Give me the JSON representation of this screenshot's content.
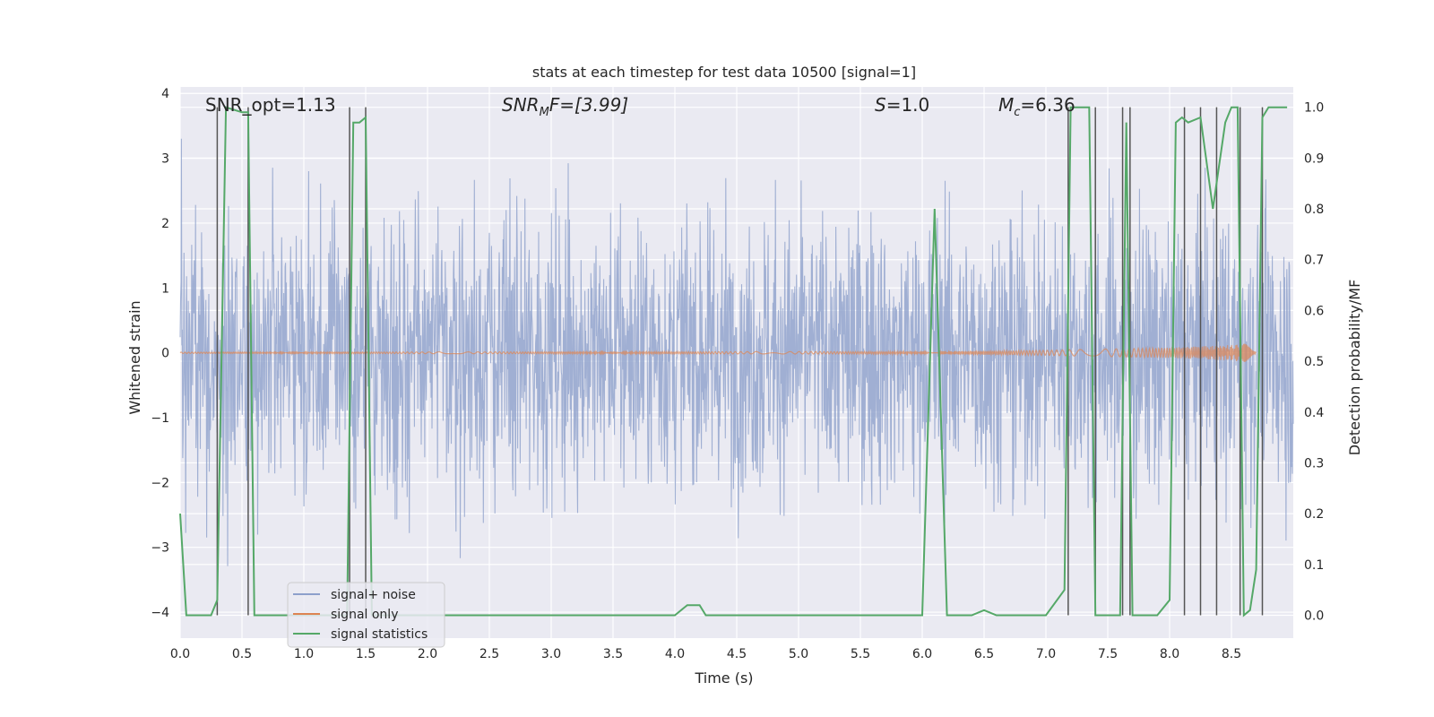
{
  "chart_data": {
    "type": "line",
    "title": "stats at each timestep for test data 10500 [signal=1]",
    "xlabel": "Time (s)",
    "ylabel": "Whitened strain",
    "y2label": "Detection probability/MF",
    "xlim": [
      0,
      9
    ],
    "ylim": [
      -4.4,
      4.1
    ],
    "y2lim": [
      -0.045,
      1.04
    ],
    "grid": true,
    "x_ticks": [
      "0.0",
      "0.5",
      "1.0",
      "1.5",
      "2.0",
      "2.5",
      "3.0",
      "3.5",
      "4.0",
      "4.5",
      "5.0",
      "5.5",
      "6.0",
      "6.5",
      "7.0",
      "7.5",
      "8.0",
      "8.5"
    ],
    "y_ticks": [
      "4",
      "3",
      "2",
      "1",
      "0",
      "−1",
      "−2",
      "−3",
      "−4"
    ],
    "y2_ticks": [
      "1.0",
      "0.9",
      "0.8",
      "0.7",
      "0.6",
      "0.5",
      "0.4",
      "0.3",
      "0.2",
      "0.1",
      "0.0"
    ],
    "annotations": {
      "snr_opt": "SNR_opt=1.13",
      "snr_mf_prefix": "SNR",
      "snr_mf_sub": "M",
      "snr_mf_suffix": "F=[3.99]",
      "s_label": "S",
      "s_value": "=1.0",
      "mc_label": "M",
      "mc_sub": "c",
      "mc_value": "=6.36"
    },
    "legend": {
      "placement": "lower-left",
      "entries": [
        "signal+ noise",
        "signal only",
        "signal statistics"
      ]
    },
    "colors": {
      "noise": "#8da0cb",
      "signal": "#dd8452",
      "stats": "#55a868",
      "vlines": "#555555",
      "plot_bg": "#eaeaf2"
    },
    "series": [
      {
        "name": "signal+ noise",
        "envelope": "random whitened strain noise, mostly within ±2.5, peaks near ±3.5"
      },
      {
        "name": "signal only",
        "x": [
          0,
          6.0,
          7.0,
          8.0,
          8.5,
          8.65,
          8.7
        ],
        "y_amplitude": [
          0.01,
          0.02,
          0.04,
          0.08,
          0.12,
          0.15,
          0.0
        ]
      },
      {
        "name": "signal statistics",
        "x": [
          0.0,
          0.05,
          0.25,
          0.3,
          0.37,
          0.5,
          0.55,
          0.6,
          0.65,
          0.7,
          0.8,
          1.0,
          1.35,
          1.4,
          1.45,
          1.5,
          1.55,
          1.6,
          1.7,
          2.0,
          3.0,
          3.1,
          3.5,
          4.0,
          4.1,
          4.2,
          4.25,
          4.5,
          5.0,
          5.5,
          6.0,
          6.1,
          6.2,
          6.3,
          6.4,
          6.5,
          6.6,
          7.0,
          7.15,
          7.2,
          7.25,
          7.35,
          7.4,
          7.45,
          7.55,
          7.6,
          7.65,
          7.7,
          7.75,
          7.8,
          7.9,
          8.0,
          8.05,
          8.1,
          8.15,
          8.25,
          8.35,
          8.45,
          8.5,
          8.55,
          8.6,
          8.65,
          8.7,
          8.75,
          8.8,
          8.85,
          8.9,
          8.95
        ],
        "y": [
          0.2,
          0.0,
          0.0,
          0.03,
          1.0,
          0.99,
          0.99,
          0.0,
          0.0,
          0.0,
          0.0,
          0.0,
          0.0,
          0.97,
          0.97,
          0.98,
          0.0,
          0.0,
          0.0,
          0.0,
          0.0,
          0.0,
          0.0,
          0.0,
          0.02,
          0.02,
          0.0,
          0.0,
          0.0,
          0.0,
          0.0,
          0.8,
          0.0,
          0.0,
          0.0,
          0.01,
          0.0,
          0.0,
          0.05,
          1.0,
          1.0,
          1.0,
          0.0,
          0.0,
          0.0,
          0.0,
          0.97,
          0.0,
          0.0,
          0.0,
          0.0,
          0.03,
          0.97,
          0.98,
          0.97,
          0.98,
          0.8,
          0.97,
          1.0,
          1.0,
          0.0,
          0.01,
          0.09,
          0.98,
          1.0,
          1.0,
          1.0,
          1.0
        ]
      }
    ],
    "vlines_x": [
      0.3,
      0.55,
      1.37,
      1.5,
      7.18,
      7.4,
      7.62,
      7.68,
      8.12,
      8.25,
      8.38,
      8.57,
      8.75
    ]
  }
}
